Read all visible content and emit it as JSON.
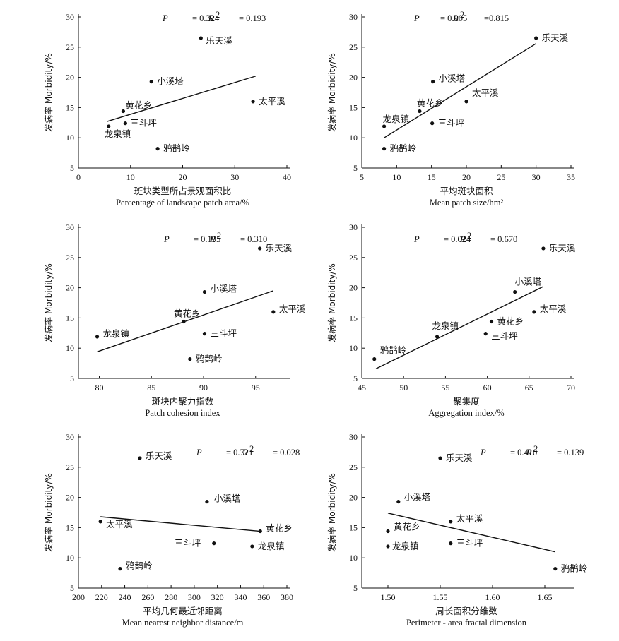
{
  "chart_data": [
    {
      "type": "scatter",
      "xlabel_cn": "斑块类型所占景观面积比",
      "xlabel_en": "Percentage of landscape patch area/%",
      "ylabel": "发病率 Morbidity/%",
      "xlim": [
        0,
        40
      ],
      "xticks": [
        0,
        10,
        20,
        30,
        40
      ],
      "ylim": [
        5,
        30
      ],
      "yticks": [
        5,
        10,
        15,
        20,
        25,
        30
      ],
      "stats": {
        "p_label": "P",
        "p_value": "= 0.324",
        "r_label": "R",
        "r_value": "= 0.193"
      },
      "points": [
        {
          "label": "乐天溪",
          "x": 23.5,
          "y": 26.5
        },
        {
          "label": "小溪塔",
          "x": 14.0,
          "y": 19.3
        },
        {
          "label": "太平溪",
          "x": 33.5,
          "y": 16.0
        },
        {
          "label": "黄花乡",
          "x": 8.6,
          "y": 14.4
        },
        {
          "label": "三斗坪",
          "x": 9.0,
          "y": 12.4
        },
        {
          "label": "龙泉镇",
          "x": 5.8,
          "y": 11.9
        },
        {
          "label": "鸦鹊岭",
          "x": 15.2,
          "y": 8.2
        }
      ],
      "fit": {
        "x": [
          5.5,
          34
        ],
        "y": [
          12.7,
          20.2
        ]
      }
    },
    {
      "type": "scatter",
      "xlabel_cn": "平均斑块面积",
      "xlabel_en": "Mean patch size/hm²",
      "ylabel": "发病率 Morbidity/%",
      "xlim": [
        5,
        35
      ],
      "xticks": [
        5,
        10,
        15,
        20,
        25,
        30,
        35
      ],
      "ylim": [
        5,
        30
      ],
      "yticks": [
        5,
        10,
        15,
        20,
        25,
        30
      ],
      "stats": {
        "p_label": "P",
        "p_value": "= 0.005",
        "r_label": "R",
        "r_value": "=0.815"
      },
      "points": [
        {
          "label": "乐天溪",
          "x": 30.0,
          "y": 26.5
        },
        {
          "label": "小溪塔",
          "x": 15.2,
          "y": 19.3
        },
        {
          "label": "太平溪",
          "x": 20.0,
          "y": 16.0
        },
        {
          "label": "黄花乡",
          "x": 13.3,
          "y": 14.4
        },
        {
          "label": "三斗坪",
          "x": 15.1,
          "y": 12.4
        },
        {
          "label": "龙泉镇",
          "x": 8.2,
          "y": 11.9
        },
        {
          "label": "鸦鹊岭",
          "x": 8.2,
          "y": 8.2
        }
      ],
      "fit": {
        "x": [
          8.2,
          30.0
        ],
        "y": [
          10.0,
          25.6
        ]
      }
    },
    {
      "type": "scatter",
      "xlabel_cn": "斑块内聚力指数",
      "xlabel_en": "Patch cohesion index",
      "ylabel": "发病率 Morbidity/%",
      "xlim": [
        78,
        98
      ],
      "xticks": [
        80,
        85,
        90,
        95
      ],
      "ylim": [
        5,
        30
      ],
      "yticks": [
        5,
        10,
        15,
        20,
        25,
        30
      ],
      "stats": {
        "p_label": "P",
        "p_value": "= 0.195",
        "r_label": "R",
        "r_value": "= 0.310"
      },
      "points": [
        {
          "label": "乐天溪",
          "x": 95.4,
          "y": 26.5
        },
        {
          "label": "小溪塔",
          "x": 90.1,
          "y": 19.3
        },
        {
          "label": "太平溪",
          "x": 96.7,
          "y": 16.0
        },
        {
          "label": "黄花乡",
          "x": 88.1,
          "y": 14.4
        },
        {
          "label": "三斗坪",
          "x": 90.1,
          "y": 12.4
        },
        {
          "label": "龙泉镇",
          "x": 79.8,
          "y": 11.9
        },
        {
          "label": "鸦鹊岭",
          "x": 88.7,
          "y": 8.2
        }
      ],
      "fit": {
        "x": [
          79.8,
          96.7
        ],
        "y": [
          9.4,
          19.5
        ]
      }
    },
    {
      "type": "scatter",
      "xlabel_cn": "聚集度",
      "xlabel_en": "Aggregation index/%",
      "ylabel": "发病率 Morbidity/%",
      "xlim": [
        45,
        70
      ],
      "xticks": [
        45,
        50,
        55,
        60,
        65,
        70
      ],
      "ylim": [
        5,
        30
      ],
      "yticks": [
        5,
        10,
        15,
        20,
        25,
        30
      ],
      "stats": {
        "p_label": "P",
        "p_value": "= 0.024",
        "r_label": "R",
        "r_value": "= 0.670"
      },
      "points": [
        {
          "label": "乐天溪",
          "x": 66.7,
          "y": 26.5
        },
        {
          "label": "小溪塔",
          "x": 63.3,
          "y": 19.3
        },
        {
          "label": "太平溪",
          "x": 65.6,
          "y": 16.0
        },
        {
          "label": "黄花乡",
          "x": 60.5,
          "y": 14.4
        },
        {
          "label": "三斗坪",
          "x": 59.8,
          "y": 12.4
        },
        {
          "label": "龙泉镇",
          "x": 54.0,
          "y": 11.9
        },
        {
          "label": "鸦鹊岭",
          "x": 46.5,
          "y": 8.2
        }
      ],
      "fit": {
        "x": [
          46.7,
          66.7
        ],
        "y": [
          6.6,
          20.2
        ]
      }
    },
    {
      "type": "scatter",
      "xlabel_cn": "平均几何最近邻距离",
      "xlabel_en": "Mean nearest neighbor distance/m",
      "ylabel": "发病率 Morbidity/%",
      "xlim": [
        200,
        380
      ],
      "xticks": [
        200,
        220,
        240,
        260,
        280,
        300,
        320,
        340,
        360,
        380
      ],
      "ylim": [
        5,
        30
      ],
      "yticks": [
        5,
        10,
        15,
        20,
        25,
        30
      ],
      "stats": {
        "p_label": "P",
        "p_value": "= 0.721",
        "r_label": "R",
        "r_value": "= 0.028"
      },
      "points": [
        {
          "label": "乐天溪",
          "x": 253,
          "y": 26.5
        },
        {
          "label": "小溪塔",
          "x": 311,
          "y": 19.3
        },
        {
          "label": "太平溪",
          "x": 219,
          "y": 16.0
        },
        {
          "label": "黄花乡",
          "x": 357,
          "y": 14.4
        },
        {
          "label": "三斗坪",
          "x": 317,
          "y": 12.4
        },
        {
          "label": "龙泉镇",
          "x": 350,
          "y": 11.9
        },
        {
          "label": "鸦鹊岭",
          "x": 236,
          "y": 8.2
        }
      ],
      "fit": {
        "x": [
          219,
          357
        ],
        "y": [
          16.8,
          14.4
        ]
      }
    },
    {
      "type": "scatter",
      "xlabel_cn": "周长面积分维数",
      "xlabel_en": "Perimeter - area fractal dimension",
      "ylabel": "发病率 Morbidity/%",
      "xlim": [
        1.475,
        1.675
      ],
      "xticks": [
        1.5,
        1.55,
        1.6,
        1.65
      ],
      "ylim": [
        5,
        30
      ],
      "yticks": [
        5,
        10,
        15,
        20,
        25,
        30
      ],
      "stats": {
        "p_label": "P",
        "p_value": "= 0.410",
        "r_label": "R",
        "r_value": "= 0.139"
      },
      "points": [
        {
          "label": "乐天溪",
          "x": 1.55,
          "y": 26.5
        },
        {
          "label": "小溪塔",
          "x": 1.51,
          "y": 19.3
        },
        {
          "label": "太平溪",
          "x": 1.56,
          "y": 16.0
        },
        {
          "label": "黄花乡",
          "x": 1.5,
          "y": 14.4
        },
        {
          "label": "三斗坪",
          "x": 1.56,
          "y": 12.4
        },
        {
          "label": "龙泉镇",
          "x": 1.5,
          "y": 11.9
        },
        {
          "label": "鸦鹊岭",
          "x": 1.66,
          "y": 8.2
        }
      ],
      "fit": {
        "x": [
          1.5,
          1.66
        ],
        "y": [
          17.4,
          11.0
        ]
      }
    }
  ]
}
